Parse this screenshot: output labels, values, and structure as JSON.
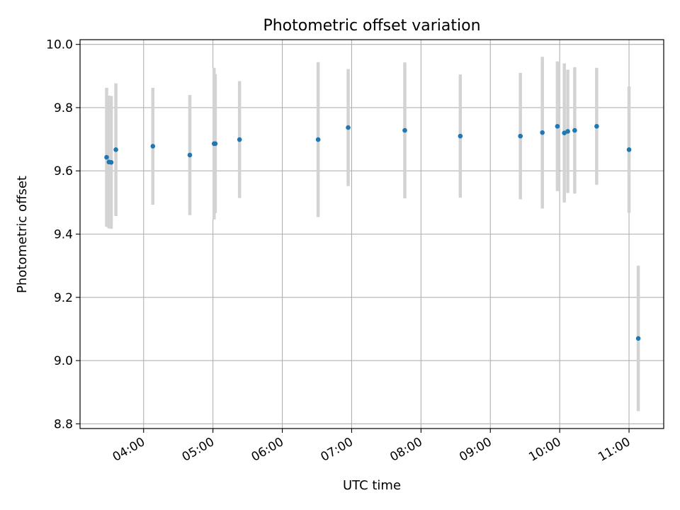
{
  "chart_data": {
    "type": "scatter",
    "title": "Photometric offset variation",
    "xlabel": "UTC time",
    "ylabel": "Photometric offset",
    "x_unit": "UTC time (hours, HH:MM)",
    "xlim": [
      "03:05",
      "11:30"
    ],
    "ylim": [
      8.785,
      10.015
    ],
    "x_ticks": [
      "04:00",
      "05:00",
      "06:00",
      "07:00",
      "08:00",
      "09:00",
      "10:00",
      "11:00"
    ],
    "y_ticks": [
      "8.8",
      "9.0",
      "9.2",
      "9.4",
      "9.6",
      "9.8",
      "10.0"
    ],
    "x_tick_rotation": -30,
    "grid": true,
    "legend": false,
    "colors": {
      "marker": "#1f77b4",
      "errorbar": "#d3d3d3",
      "grid": "#b0b0b0",
      "axes": "#000000"
    },
    "series": [
      {
        "points": [
          {
            "x": "03:28",
            "y": 9.643,
            "yerr": 0.22
          },
          {
            "x": "03:30",
            "y": 9.628,
            "yerr": 0.21
          },
          {
            "x": "03:32",
            "y": 9.627,
            "yerr": 0.21
          },
          {
            "x": "03:36",
            "y": 9.667,
            "yerr": 0.21
          },
          {
            "x": "04:08",
            "y": 9.678,
            "yerr": 0.185
          },
          {
            "x": "04:40",
            "y": 9.65,
            "yerr": 0.19
          },
          {
            "x": "05:01",
            "y": 9.686,
            "yerr": 0.24
          },
          {
            "x": "05:02",
            "y": 9.686,
            "yerr": 0.22
          },
          {
            "x": "05:23",
            "y": 9.699,
            "yerr": 0.185
          },
          {
            "x": "06:31",
            "y": 9.699,
            "yerr": 0.245
          },
          {
            "x": "06:57",
            "y": 9.737,
            "yerr": 0.185
          },
          {
            "x": "07:46",
            "y": 9.728,
            "yerr": 0.215
          },
          {
            "x": "08:34",
            "y": 9.71,
            "yerr": 0.195
          },
          {
            "x": "09:26",
            "y": 9.71,
            "yerr": 0.2
          },
          {
            "x": "09:45",
            "y": 9.721,
            "yerr": 0.24
          },
          {
            "x": "09:58",
            "y": 9.741,
            "yerr": 0.205
          },
          {
            "x": "10:04",
            "y": 9.72,
            "yerr": 0.22
          },
          {
            "x": "10:07",
            "y": 9.725,
            "yerr": 0.195
          },
          {
            "x": "10:13",
            "y": 9.728,
            "yerr": 0.2
          },
          {
            "x": "10:32",
            "y": 9.741,
            "yerr": 0.185
          },
          {
            "x": "11:00",
            "y": 9.667,
            "yerr": 0.2
          },
          {
            "x": "11:08",
            "y": 9.07,
            "yerr": 0.23
          }
        ]
      }
    ]
  }
}
